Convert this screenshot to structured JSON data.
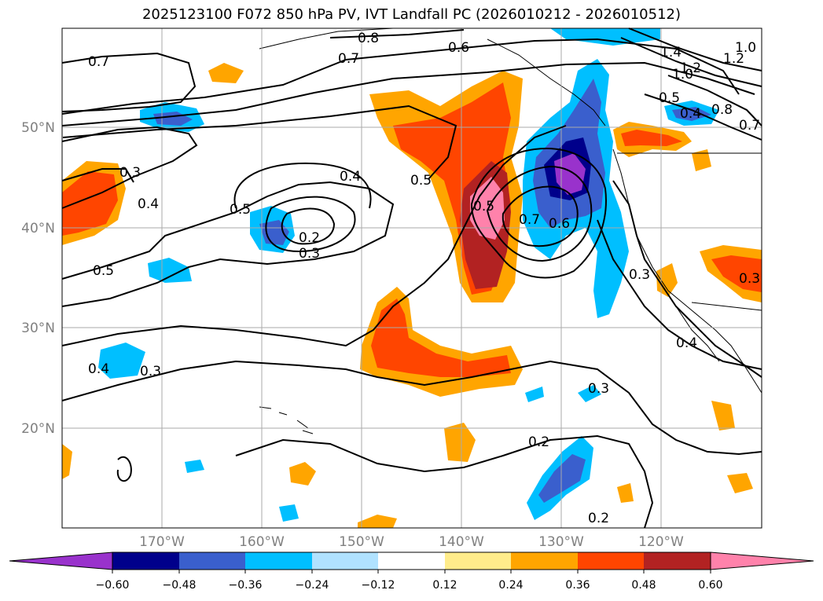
{
  "title": "2025123100 F072 850 hPa PV, IVT Landfall PC (2026010212 - 2026010512)",
  "latitude_labels": [
    "50°N",
    "40°N",
    "30°N",
    "20°N"
  ],
  "longitude_labels": [
    "170°W",
    "160°W",
    "150°W",
    "140°W",
    "130°W",
    "120°W"
  ],
  "colorbar": {
    "colors": [
      "#9932cc",
      "#00008b",
      "#3a5fcd",
      "#00bfff",
      "#b0e2ff",
      "#ffffff",
      "#ffec8b",
      "#ffa500",
      "#ff4500",
      "#b22222",
      "#ff82ab"
    ],
    "ticks": [
      "−0.60",
      "−0.48",
      "−0.36",
      "−0.24",
      "−0.12",
      "0.12",
      "0.24",
      "0.36",
      "0.48",
      "0.60"
    ]
  },
  "contour_labels": [
    "0.8",
    "0.7",
    "0.6",
    "0.7",
    "1.4",
    "1.2",
    "1.0",
    "1.2",
    "1.0",
    "0.5",
    "0.4",
    "0.8",
    "0.7",
    "0.3",
    "0.4",
    "0.5",
    "0.4",
    "0.5",
    "0.2",
    "0.3",
    "0.5",
    "0.7",
    "0.6",
    "0.5",
    "0.3",
    "0.3",
    "0.4",
    "0.4",
    "0.3",
    "0.3",
    "0.2",
    "0.2"
  ]
}
